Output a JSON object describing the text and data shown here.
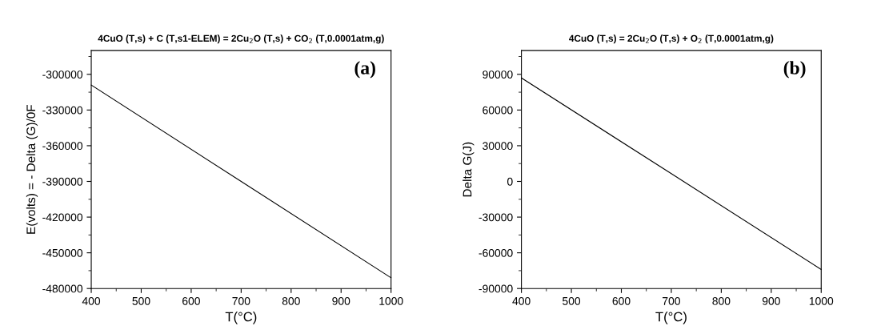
{
  "chart_data": [
    {
      "type": "line",
      "title": "4CuO (T,s) + C (T,s1-ELEM) = 2Cu$_{2}$O (T,s) + CO$_{2}$ (T,0.0001atm,g)",
      "xlabel": "T(°C)",
      "ylabel": "E(volts) = - Delta (G)/0F",
      "annotations": [
        "(a)"
      ],
      "x": [
        400,
        700,
        1000
      ],
      "series": [
        {
          "color": "#000000",
          "values": [
            -309000,
            -390000,
            -471000
          ]
        }
      ],
      "xlim": [
        400,
        1000
      ],
      "xticks": [
        400,
        500,
        600,
        700,
        800,
        900,
        1000
      ],
      "ylim": [
        -480000,
        -280000
      ],
      "yticks": [
        -480000,
        -450000,
        -420000,
        -390000,
        -360000,
        -330000,
        -300000
      ]
    },
    {
      "type": "line",
      "title": "4CuO (T,s) = 2Cu$_{2}$O (T,s) + O$_{2}$ (T,0.0001atm,g)",
      "xlabel": "T(°C)",
      "ylabel": "Delta G(J)",
      "annotations": [
        "(b)"
      ],
      "x": [
        400,
        700,
        1000
      ],
      "series": [
        {
          "color": "#000000",
          "values": [
            87000,
            6500,
            -74000
          ]
        }
      ],
      "xlim": [
        400,
        1000
      ],
      "xticks": [
        400,
        500,
        600,
        700,
        800,
        900,
        1000
      ],
      "ylim": [
        -90000,
        110000
      ],
      "yticks": [
        -90000,
        -60000,
        -30000,
        0,
        30000,
        60000,
        90000
      ]
    }
  ]
}
